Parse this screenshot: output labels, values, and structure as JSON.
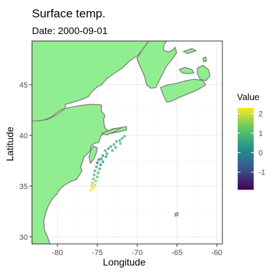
{
  "title": "Surface temp.",
  "subtitle": "Date: 2000-09-01",
  "colors": {
    "land": "#90ee90",
    "coast": "#7f7f7f",
    "grid": "#ebebeb",
    "panel_border": "#333333"
  },
  "chart_data": {
    "type": "scatter",
    "title": "Surface temp.",
    "subtitle": "Date: 2000-09-01",
    "xlabel": "Longitude",
    "ylabel": "Latitude",
    "xlim": [
      -83.2,
      -59.3
    ],
    "ylim": [
      29.3,
      49.3
    ],
    "x_ticks": [
      -80,
      -75,
      -70,
      -65,
      -60
    ],
    "y_ticks": [
      30,
      35,
      40,
      45
    ],
    "x_tick_labels": [
      "-80",
      "-75",
      "-70",
      "-65",
      "-60"
    ],
    "y_tick_labels": [
      "30",
      "35",
      "40",
      "45"
    ],
    "grid": true,
    "legend": {
      "title": "Value",
      "placement": "right",
      "min": -1.9,
      "max": 2.3,
      "ticks": [
        2,
        1,
        0,
        -1
      ],
      "tick_labels": [
        "2",
        "1",
        "0",
        "-1"
      ],
      "colormap": "viridis"
    },
    "points": [
      {
        "lon": -71.6,
        "lat": 39.9,
        "value": 1.0
      },
      {
        "lon": -71.9,
        "lat": 39.7,
        "value": 0.9
      },
      {
        "lon": -72.2,
        "lat": 39.5,
        "value": 0.9
      },
      {
        "lon": -72.6,
        "lat": 39.4,
        "value": 0.8
      },
      {
        "lon": -72.1,
        "lat": 39.2,
        "value": 1.0
      },
      {
        "lon": -72.9,
        "lat": 39.1,
        "value": 0.8
      },
      {
        "lon": -73.3,
        "lat": 38.9,
        "value": 0.7
      },
      {
        "lon": -72.7,
        "lat": 38.8,
        "value": 0.9
      },
      {
        "lon": -73.6,
        "lat": 38.7,
        "value": 0.7
      },
      {
        "lon": -73.1,
        "lat": 38.5,
        "value": 0.8
      },
      {
        "lon": -74.0,
        "lat": 38.5,
        "value": 0.6
      },
      {
        "lon": -73.8,
        "lat": 38.2,
        "value": 0.5
      },
      {
        "lon": -74.3,
        "lat": 38.0,
        "value": 0.4
      },
      {
        "lon": -73.9,
        "lat": 37.9,
        "value": 0.5
      },
      {
        "lon": -74.5,
        "lat": 37.7,
        "value": 0.2
      },
      {
        "lon": -74.8,
        "lat": 37.6,
        "value": -0.1
      },
      {
        "lon": -74.3,
        "lat": 37.4,
        "value": 0.3
      },
      {
        "lon": -75.0,
        "lat": 37.3,
        "value": -0.3
      },
      {
        "lon": -74.6,
        "lat": 37.1,
        "value": 0.0
      },
      {
        "lon": -75.1,
        "lat": 36.9,
        "value": 0.4
      },
      {
        "lon": -74.7,
        "lat": 36.7,
        "value": 0.5
      },
      {
        "lon": -75.3,
        "lat": 36.5,
        "value": 0.8
      },
      {
        "lon": -74.9,
        "lat": 36.3,
        "value": 0.9
      },
      {
        "lon": -75.4,
        "lat": 36.1,
        "value": 1.0
      },
      {
        "lon": -75.0,
        "lat": 35.9,
        "value": 1.2
      },
      {
        "lon": -75.5,
        "lat": 35.7,
        "value": 1.3
      },
      {
        "lon": -75.2,
        "lat": 35.5,
        "value": 1.5
      },
      {
        "lon": -75.6,
        "lat": 35.3,
        "value": 1.7
      },
      {
        "lon": -75.3,
        "lat": 35.1,
        "value": 1.8
      },
      {
        "lon": -75.7,
        "lat": 35.0,
        "value": 2.0
      },
      {
        "lon": -75.5,
        "lat": 34.8,
        "value": 2.1
      },
      {
        "lon": -75.8,
        "lat": 34.6,
        "value": 2.2
      }
    ]
  }
}
